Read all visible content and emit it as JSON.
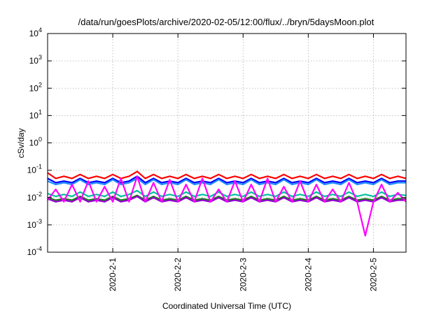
{
  "chart_data": {
    "type": "line",
    "title": "/data/run/goesPlots/archive/2020-02-05/12:00/flux/../bryn/5daysMoon.plot",
    "xlabel": "Coordinated Universal Time (UTC)",
    "ylabel": "cSv/day",
    "yscale": "log",
    "ylim": [
      0.0001,
      10000
    ],
    "xlim": [
      "2020-01-31T00:00",
      "2020-02-05T12:00"
    ],
    "grid": true,
    "legend": "none",
    "y_ticks": [
      {
        "value": 0.0001,
        "base": "10",
        "exp": "-4"
      },
      {
        "value": 0.001,
        "base": "10",
        "exp": "-3"
      },
      {
        "value": 0.01,
        "base": "10",
        "exp": "-2"
      },
      {
        "value": 0.1,
        "base": "10",
        "exp": "-1"
      },
      {
        "value": 1,
        "base": "10",
        "exp": "0"
      },
      {
        "value": 10,
        "base": "10",
        "exp": "1"
      },
      {
        "value": 100,
        "base": "10",
        "exp": "2"
      },
      {
        "value": 1000,
        "base": "10",
        "exp": "3"
      },
      {
        "value": 10000,
        "base": "10",
        "exp": "4"
      }
    ],
    "x_ticks": [
      {
        "value": "2020-02-01T00:00",
        "label": "2020-2-1"
      },
      {
        "value": "2020-02-02T00:00",
        "label": "2020-2-2"
      },
      {
        "value": "2020-02-03T00:00",
        "label": "2020-2-3"
      },
      {
        "value": "2020-02-04T00:00",
        "label": "2020-2-4"
      },
      {
        "value": "2020-02-05T00:00",
        "label": "2020-2-5"
      }
    ],
    "x": [
      "2020-01-31T00:00",
      "2020-01-31T03:00",
      "2020-01-31T06:00",
      "2020-01-31T09:00",
      "2020-01-31T12:00",
      "2020-01-31T15:00",
      "2020-01-31T18:00",
      "2020-01-31T21:00",
      "2020-02-01T00:00",
      "2020-02-01T03:00",
      "2020-02-01T06:00",
      "2020-02-01T09:00",
      "2020-02-01T12:00",
      "2020-02-01T15:00",
      "2020-02-01T18:00",
      "2020-02-01T21:00",
      "2020-02-02T00:00",
      "2020-02-02T03:00",
      "2020-02-02T06:00",
      "2020-02-02T09:00",
      "2020-02-02T12:00",
      "2020-02-02T15:00",
      "2020-02-02T18:00",
      "2020-02-02T21:00",
      "2020-02-03T00:00",
      "2020-02-03T03:00",
      "2020-02-03T06:00",
      "2020-02-03T09:00",
      "2020-02-03T12:00",
      "2020-02-03T15:00",
      "2020-02-03T18:00",
      "2020-02-03T21:00",
      "2020-02-04T00:00",
      "2020-02-04T03:00",
      "2020-02-04T06:00",
      "2020-02-04T09:00",
      "2020-02-04T12:00",
      "2020-02-04T15:00",
      "2020-02-04T18:00",
      "2020-02-04T21:00",
      "2020-02-05T00:00",
      "2020-02-05T03:00",
      "2020-02-05T06:00",
      "2020-02-05T09:00",
      "2020-02-05T12:00"
    ],
    "series": [
      {
        "color": "#ff0000",
        "values": [
          0.08,
          0.05,
          0.06,
          0.05,
          0.07,
          0.05,
          0.06,
          0.05,
          0.07,
          0.05,
          0.06,
          0.09,
          0.05,
          0.07,
          0.05,
          0.06,
          0.05,
          0.07,
          0.05,
          0.06,
          0.05,
          0.07,
          0.05,
          0.06,
          0.05,
          0.07,
          0.05,
          0.06,
          0.05,
          0.07,
          0.05,
          0.06,
          0.05,
          0.07,
          0.05,
          0.06,
          0.05,
          0.07,
          0.05,
          0.06,
          0.05,
          0.07,
          0.05,
          0.06,
          0.05
        ]
      },
      {
        "color": "#0000ff",
        "values": [
          0.05,
          0.035,
          0.04,
          0.035,
          0.05,
          0.035,
          0.04,
          0.035,
          0.05,
          0.035,
          0.04,
          0.06,
          0.035,
          0.05,
          0.035,
          0.04,
          0.035,
          0.05,
          0.035,
          0.04,
          0.035,
          0.05,
          0.035,
          0.04,
          0.035,
          0.05,
          0.035,
          0.04,
          0.035,
          0.05,
          0.035,
          0.04,
          0.035,
          0.05,
          0.035,
          0.04,
          0.035,
          0.05,
          0.035,
          0.04,
          0.035,
          0.05,
          0.035,
          0.04,
          0.04
        ]
      },
      {
        "color": "#1e90ff",
        "values": [
          0.04,
          0.03,
          0.035,
          0.03,
          0.045,
          0.03,
          0.035,
          0.03,
          0.045,
          0.03,
          0.035,
          0.05,
          0.03,
          0.045,
          0.03,
          0.035,
          0.03,
          0.045,
          0.03,
          0.035,
          0.03,
          0.045,
          0.03,
          0.035,
          0.03,
          0.045,
          0.03,
          0.035,
          0.03,
          0.045,
          0.03,
          0.035,
          0.03,
          0.045,
          0.03,
          0.035,
          0.03,
          0.045,
          0.03,
          0.035,
          0.03,
          0.045,
          0.03,
          0.035,
          0.035
        ]
      },
      {
        "color": "#00c0a0",
        "values": [
          0.014,
          0.011,
          0.013,
          0.011,
          0.016,
          0.011,
          0.013,
          0.011,
          0.016,
          0.011,
          0.013,
          0.018,
          0.011,
          0.016,
          0.011,
          0.013,
          0.011,
          0.016,
          0.011,
          0.013,
          0.011,
          0.016,
          0.011,
          0.013,
          0.011,
          0.016,
          0.011,
          0.013,
          0.011,
          0.016,
          0.011,
          0.013,
          0.011,
          0.016,
          0.011,
          0.013,
          0.011,
          0.016,
          0.011,
          0.013,
          0.011,
          0.016,
          0.011,
          0.013,
          0.012
        ]
      },
      {
        "color": "#1a7a1a",
        "values": [
          0.01,
          0.008,
          0.009,
          0.008,
          0.011,
          0.008,
          0.009,
          0.008,
          0.011,
          0.008,
          0.009,
          0.012,
          0.008,
          0.011,
          0.008,
          0.009,
          0.008,
          0.011,
          0.008,
          0.009,
          0.008,
          0.011,
          0.008,
          0.009,
          0.008,
          0.011,
          0.008,
          0.009,
          0.008,
          0.011,
          0.008,
          0.009,
          0.008,
          0.011,
          0.008,
          0.009,
          0.008,
          0.011,
          0.008,
          0.009,
          0.008,
          0.011,
          0.008,
          0.009,
          0.009
        ]
      },
      {
        "color": "#9400d3",
        "values": [
          0.009,
          0.007,
          0.008,
          0.007,
          0.01,
          0.007,
          0.008,
          0.007,
          0.01,
          0.007,
          0.008,
          0.011,
          0.007,
          0.01,
          0.007,
          0.008,
          0.007,
          0.01,
          0.007,
          0.008,
          0.007,
          0.01,
          0.007,
          0.008,
          0.007,
          0.01,
          0.007,
          0.008,
          0.007,
          0.01,
          0.007,
          0.008,
          0.007,
          0.01,
          0.007,
          0.008,
          0.007,
          0.01,
          0.007,
          0.008,
          0.007,
          0.01,
          0.007,
          0.008,
          0.008
        ]
      },
      {
        "color": "#ff00ff",
        "values": [
          0.008,
          0.02,
          0.007,
          0.03,
          0.007,
          0.04,
          0.007,
          0.025,
          0.007,
          0.05,
          0.007,
          0.06,
          0.007,
          0.035,
          0.007,
          0.045,
          0.007,
          0.03,
          0.007,
          0.05,
          0.007,
          0.02,
          0.007,
          0.04,
          0.007,
          0.03,
          0.007,
          0.05,
          0.007,
          0.025,
          0.007,
          0.04,
          0.007,
          0.03,
          0.007,
          0.02,
          0.007,
          0.035,
          0.007,
          0.0004,
          0.007,
          0.03,
          0.007,
          0.015,
          0.007
        ]
      }
    ]
  }
}
